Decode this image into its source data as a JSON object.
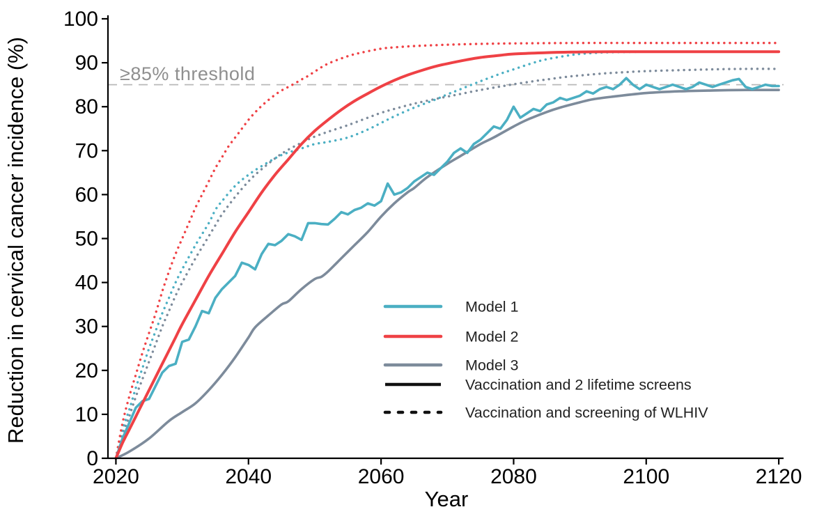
{
  "figure": {
    "x_axis_label": "Year",
    "y_axis_label": "Reduction in cervical cancer incidence (%)",
    "x_ticks": [
      2020,
      2040,
      2060,
      2080,
      2100,
      2120
    ],
    "y_ticks": [
      0,
      10,
      20,
      30,
      40,
      50,
      60,
      70,
      80,
      90,
      100
    ],
    "threshold_label": "≥85% threshold"
  },
  "legend": {
    "models": [
      {
        "label": "Model 1",
        "color": "#4bafc3"
      },
      {
        "label": "Model 2",
        "color": "#ef4145"
      },
      {
        "label": "Model 3",
        "color": "#7d8b9b"
      }
    ],
    "linetypes": [
      {
        "label": "Vaccination and 2 lifetime screens",
        "style": "solid",
        "color": "#111111"
      },
      {
        "label": "Vaccination and screening of WLHIV",
        "style": "dotted",
        "color": "#111111"
      }
    ]
  },
  "colors": {
    "model1": "#4bafc3",
    "model2": "#ef4145",
    "model3": "#7d8b9b",
    "axis": "#000000",
    "threshold_line": "#b8b8b8",
    "threshold_text": "#8f8f8f"
  },
  "chart_data": {
    "type": "line",
    "title": "",
    "xlabel": "Year",
    "ylabel": "Reduction in cervical cancer incidence (%)",
    "xlim": [
      2019,
      2121
    ],
    "ylim": [
      0,
      100
    ],
    "grid": false,
    "legend_position": "inside lower-right",
    "threshold_line": {
      "y": 85,
      "label": "≥85% threshold"
    },
    "series": [
      {
        "name": "Model 3 — Vaccination and screening of WLHIV",
        "model": "Model 3",
        "scenario": "Vaccination and screening of WLHIV",
        "color": "#7d8b9b",
        "style": "dotted",
        "smooth": true,
        "x": [
          2020,
          2021,
          2022,
          2023,
          2024,
          2025,
          2026,
          2027,
          2028,
          2029,
          2030,
          2032,
          2034,
          2035,
          2036,
          2038,
          2040,
          2042,
          2045,
          2048,
          2050,
          2052,
          2055,
          2058,
          2060,
          2062,
          2065,
          2068,
          2070,
          2072,
          2075,
          2078,
          2080,
          2083,
          2085,
          2088,
          2090,
          2093,
          2095,
          2100,
          2105,
          2110,
          2115,
          2120
        ],
        "y": [
          0,
          5.5,
          9.5,
          14,
          18,
          22,
          26,
          30,
          33.5,
          37,
          40,
          45.5,
          50.5,
          53,
          55.5,
          59.5,
          63,
          65.8,
          69.3,
          71.8,
          73.2,
          74.3,
          75.8,
          77.5,
          78.6,
          79.5,
          80.7,
          81.7,
          82.3,
          82.9,
          83.8,
          84.6,
          85.1,
          85.8,
          86.2,
          86.8,
          87.1,
          87.5,
          87.7,
          88.1,
          88.3,
          88.5,
          88.6,
          88.6
        ]
      },
      {
        "name": "Model 1 — Vaccination and screening of WLHIV",
        "model": "Model 1",
        "scenario": "Vaccination and screening of WLHIV",
        "color": "#4bafc3",
        "style": "dotted",
        "smooth": true,
        "x": [
          2020,
          2021,
          2022,
          2023,
          2024,
          2025,
          2026,
          2027,
          2028,
          2029,
          2030,
          2032,
          2034,
          2035,
          2036,
          2038,
          2040,
          2042,
          2045,
          2048,
          2050,
          2052,
          2055,
          2058,
          2060,
          2062,
          2065,
          2068,
          2070,
          2072,
          2075,
          2078,
          2080,
          2083,
          2085,
          2088,
          2090,
          2093,
          2095,
          2100,
          2105,
          2110,
          2115,
          2120
        ],
        "y": [
          0,
          6.5,
          11,
          16,
          20.5,
          25,
          29,
          33,
          36.5,
          40,
          43,
          48.5,
          53.5,
          56.5,
          58.5,
          62,
          64.5,
          66.5,
          69,
          70.5,
          71.5,
          72,
          73,
          74.8,
          76.3,
          77.8,
          79.8,
          81.5,
          82.8,
          84,
          85.8,
          87.5,
          88.5,
          90,
          90.8,
          91.6,
          92,
          92.3,
          92.4,
          92.5,
          92.5,
          92.5,
          92.5,
          92.5
        ]
      },
      {
        "name": "Model 2 — Vaccination and screening of WLHIV",
        "model": "Model 2",
        "scenario": "Vaccination and screening of WLHIV",
        "color": "#ef4145",
        "style": "dotted",
        "smooth": true,
        "x": [
          2020,
          2021,
          2022,
          2023,
          2024,
          2025,
          2026,
          2027,
          2028,
          2029,
          2030,
          2031,
          2032,
          2033,
          2034,
          2035,
          2036,
          2037,
          2038,
          2039,
          2040,
          2041,
          2042,
          2043,
          2044,
          2045,
          2046,
          2047,
          2048,
          2049,
          2050,
          2052,
          2055,
          2057,
          2060,
          2062,
          2065,
          2070,
          2075,
          2080,
          2090,
          2100,
          2110,
          2120
        ],
        "y": [
          0,
          8,
          14,
          19,
          24,
          28.5,
          33,
          38,
          42.5,
          46.5,
          50,
          53.5,
          57,
          60,
          63,
          66,
          68.5,
          71,
          73,
          75,
          77,
          78.7,
          80.2,
          81.5,
          82.7,
          83.7,
          84.5,
          85.3,
          86.2,
          87,
          88,
          89.8,
          91.5,
          92.3,
          93.2,
          93.5,
          93.8,
          94.1,
          94.3,
          94.4,
          94.5,
          94.5,
          94.5,
          94.5
        ]
      },
      {
        "name": "Model 3 — Vaccination and 2 lifetime screens",
        "model": "Model 3",
        "scenario": "Vaccination and 2 lifetime screens",
        "color": "#7d8b9b",
        "style": "solid",
        "smooth": true,
        "x": [
          2020,
          2022,
          2025,
          2028,
          2030,
          2032,
          2034,
          2036,
          2038,
          2040,
          2041,
          2043,
          2045,
          2046,
          2048,
          2050,
          2051,
          2052,
          2054,
          2056,
          2058,
          2060,
          2062,
          2064,
          2065,
          2067,
          2070,
          2072,
          2075,
          2077,
          2080,
          2082,
          2085,
          2087,
          2090,
          2092,
          2095,
          2100,
          2105,
          2110,
          2115,
          2120
        ],
        "y": [
          0,
          1.5,
          4.5,
          8.5,
          10.5,
          12.5,
          15.5,
          19,
          23,
          27.5,
          29.8,
          32.5,
          35,
          35.7,
          38.5,
          40.8,
          41.3,
          42.5,
          45.5,
          48.5,
          51.5,
          55,
          58,
          60.5,
          61.5,
          64,
          67,
          68.8,
          71.5,
          73,
          75.5,
          77,
          78.8,
          79.8,
          81,
          81.7,
          82.3,
          83.1,
          83.5,
          83.7,
          83.8,
          83.8
        ]
      },
      {
        "name": "Model 1 — Vaccination and 2 lifetime screens",
        "model": "Model 1",
        "scenario": "Vaccination and 2 lifetime screens",
        "color": "#4bafc3",
        "style": "solid",
        "smooth": false,
        "x_start": 2020,
        "x_step": 1,
        "y": [
          0,
          4.5,
          8,
          11.5,
          13,
          13.5,
          16.5,
          19.5,
          21,
          21.5,
          26.5,
          27,
          30,
          33.5,
          33,
          36.5,
          38.5,
          40,
          41.5,
          44.5,
          44,
          43,
          46.5,
          48.8,
          48.5,
          49.5,
          51,
          50.5,
          49.7,
          53.5,
          53.5,
          53.3,
          53.2,
          54.5,
          56,
          55.5,
          56.5,
          57,
          58,
          57.5,
          58.5,
          62.5,
          60,
          60.5,
          61.5,
          63,
          64,
          65,
          64.5,
          66,
          67.5,
          69.5,
          70.5,
          69.5,
          71.5,
          72.5,
          74,
          75.5,
          75,
          77,
          80,
          77.5,
          78.5,
          79.5,
          79,
          80.5,
          81,
          82,
          81.5,
          82,
          82.5,
          83.5,
          83,
          84,
          84.5,
          84,
          85,
          86.5,
          85,
          84,
          85,
          84.5,
          84,
          84.5,
          85,
          84.5,
          84,
          84.5,
          85.5,
          85,
          84.5,
          85,
          85.5,
          86,
          86.3,
          84.5,
          84,
          84.5,
          85,
          84.7,
          84.7
        ]
      },
      {
        "name": "Model 2 — Vaccination and 2 lifetime screens",
        "model": "Model 2",
        "scenario": "Vaccination and 2 lifetime screens",
        "color": "#ef4145",
        "style": "solid",
        "smooth": true,
        "x": [
          2020,
          2021,
          2022,
          2023,
          2024,
          2025,
          2026,
          2027,
          2028,
          2029,
          2030,
          2032,
          2034,
          2036,
          2038,
          2040,
          2042,
          2044,
          2046,
          2048,
          2050,
          2052,
          2054,
          2056,
          2058,
          2060,
          2062,
          2064,
          2066,
          2068,
          2070,
          2073,
          2075,
          2078,
          2080,
          2085,
          2090,
          2095,
          2100,
          2110,
          2120
        ],
        "y": [
          0,
          3.5,
          6.5,
          9.5,
          12.5,
          15.5,
          18.5,
          21.5,
          24.5,
          27.5,
          30.5,
          36,
          41.5,
          46.5,
          51.5,
          56,
          60.5,
          64.5,
          68,
          71.5,
          74.5,
          77,
          79.3,
          81.3,
          83,
          84.6,
          86,
          87.2,
          88.2,
          89.1,
          89.8,
          90.7,
          91.2,
          91.7,
          92,
          92.3,
          92.45,
          92.5,
          92.5,
          92.5,
          92.5
        ]
      }
    ]
  }
}
